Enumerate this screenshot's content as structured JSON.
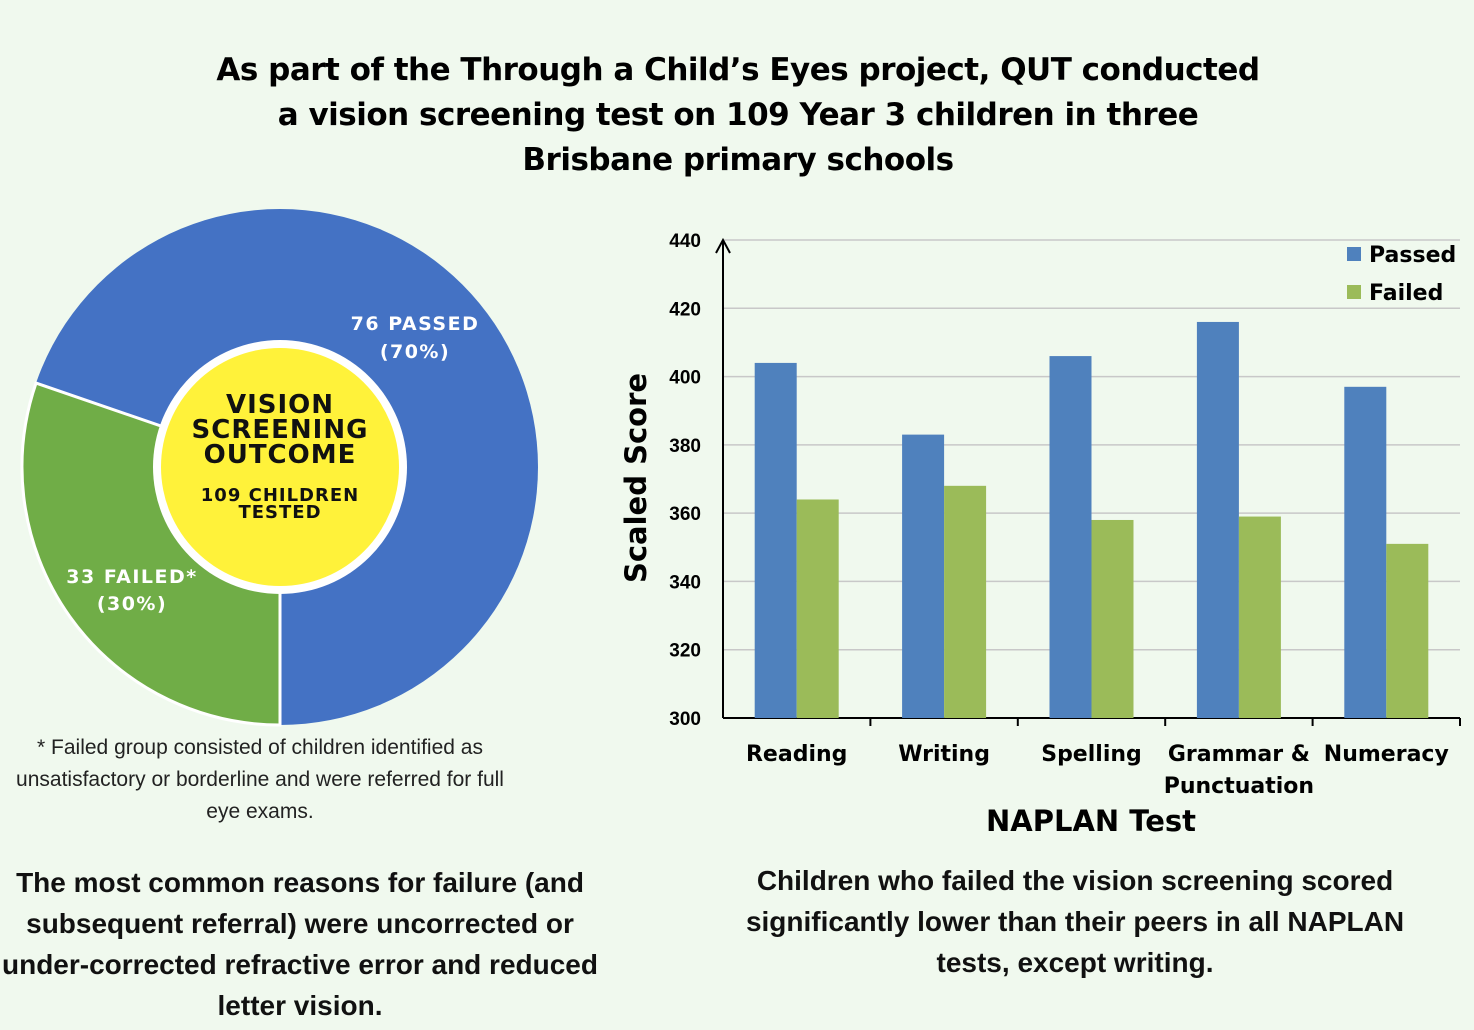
{
  "title": "As part of the Through a Child’s Eyes project, QUT conducted\na vision screening test on 109 Year 3 children in three\nBrisbane primary schools",
  "pie": {
    "center_title": [
      "VISION",
      "SCREENING",
      "OUTCOME"
    ],
    "center_sub": [
      "109 CHILDREN",
      "TESTED"
    ],
    "passed_label": [
      "76 PASSED",
      "(70%)"
    ],
    "failed_label": [
      "33 FAILED*",
      "(30%)"
    ],
    "colors": {
      "passed": "#4472c4",
      "failed": "#70ad47",
      "center": "#fff23a"
    }
  },
  "footnote": "* Failed group consisted of children identified as unsatisfactory or borderline and were referred for full eye exams.",
  "left_text": "The most common reasons for failure (and subsequent referral) were uncorrected or under-corrected refractive error and reduced letter vision.",
  "right_text": "Children who failed the vision screening scored significantly lower than their peers in all NAPLAN tests, except writing.",
  "chart_data": [
    {
      "type": "pie",
      "categories": [
        "Passed",
        "Failed"
      ],
      "values": [
        76,
        33
      ],
      "percent": [
        70,
        30
      ]
    },
    {
      "type": "bar",
      "categories": [
        "Reading",
        "Writing",
        "Spelling",
        "Grammar &\nPunctuation",
        "Numeracy"
      ],
      "series": [
        {
          "name": "Passed",
          "values": [
            404,
            383,
            406,
            416,
            397
          ],
          "color": "#4f81bd"
        },
        {
          "name": "Failed",
          "values": [
            364,
            368,
            358,
            359,
            351
          ],
          "color": "#9bbb59"
        }
      ],
      "xlabel": "NAPLAN Test",
      "ylabel": "Scaled Score",
      "ylim": [
        300,
        440
      ],
      "yticks": [
        300,
        320,
        340,
        360,
        380,
        400,
        420,
        440
      ],
      "grid": true,
      "legend": "top-right"
    }
  ]
}
